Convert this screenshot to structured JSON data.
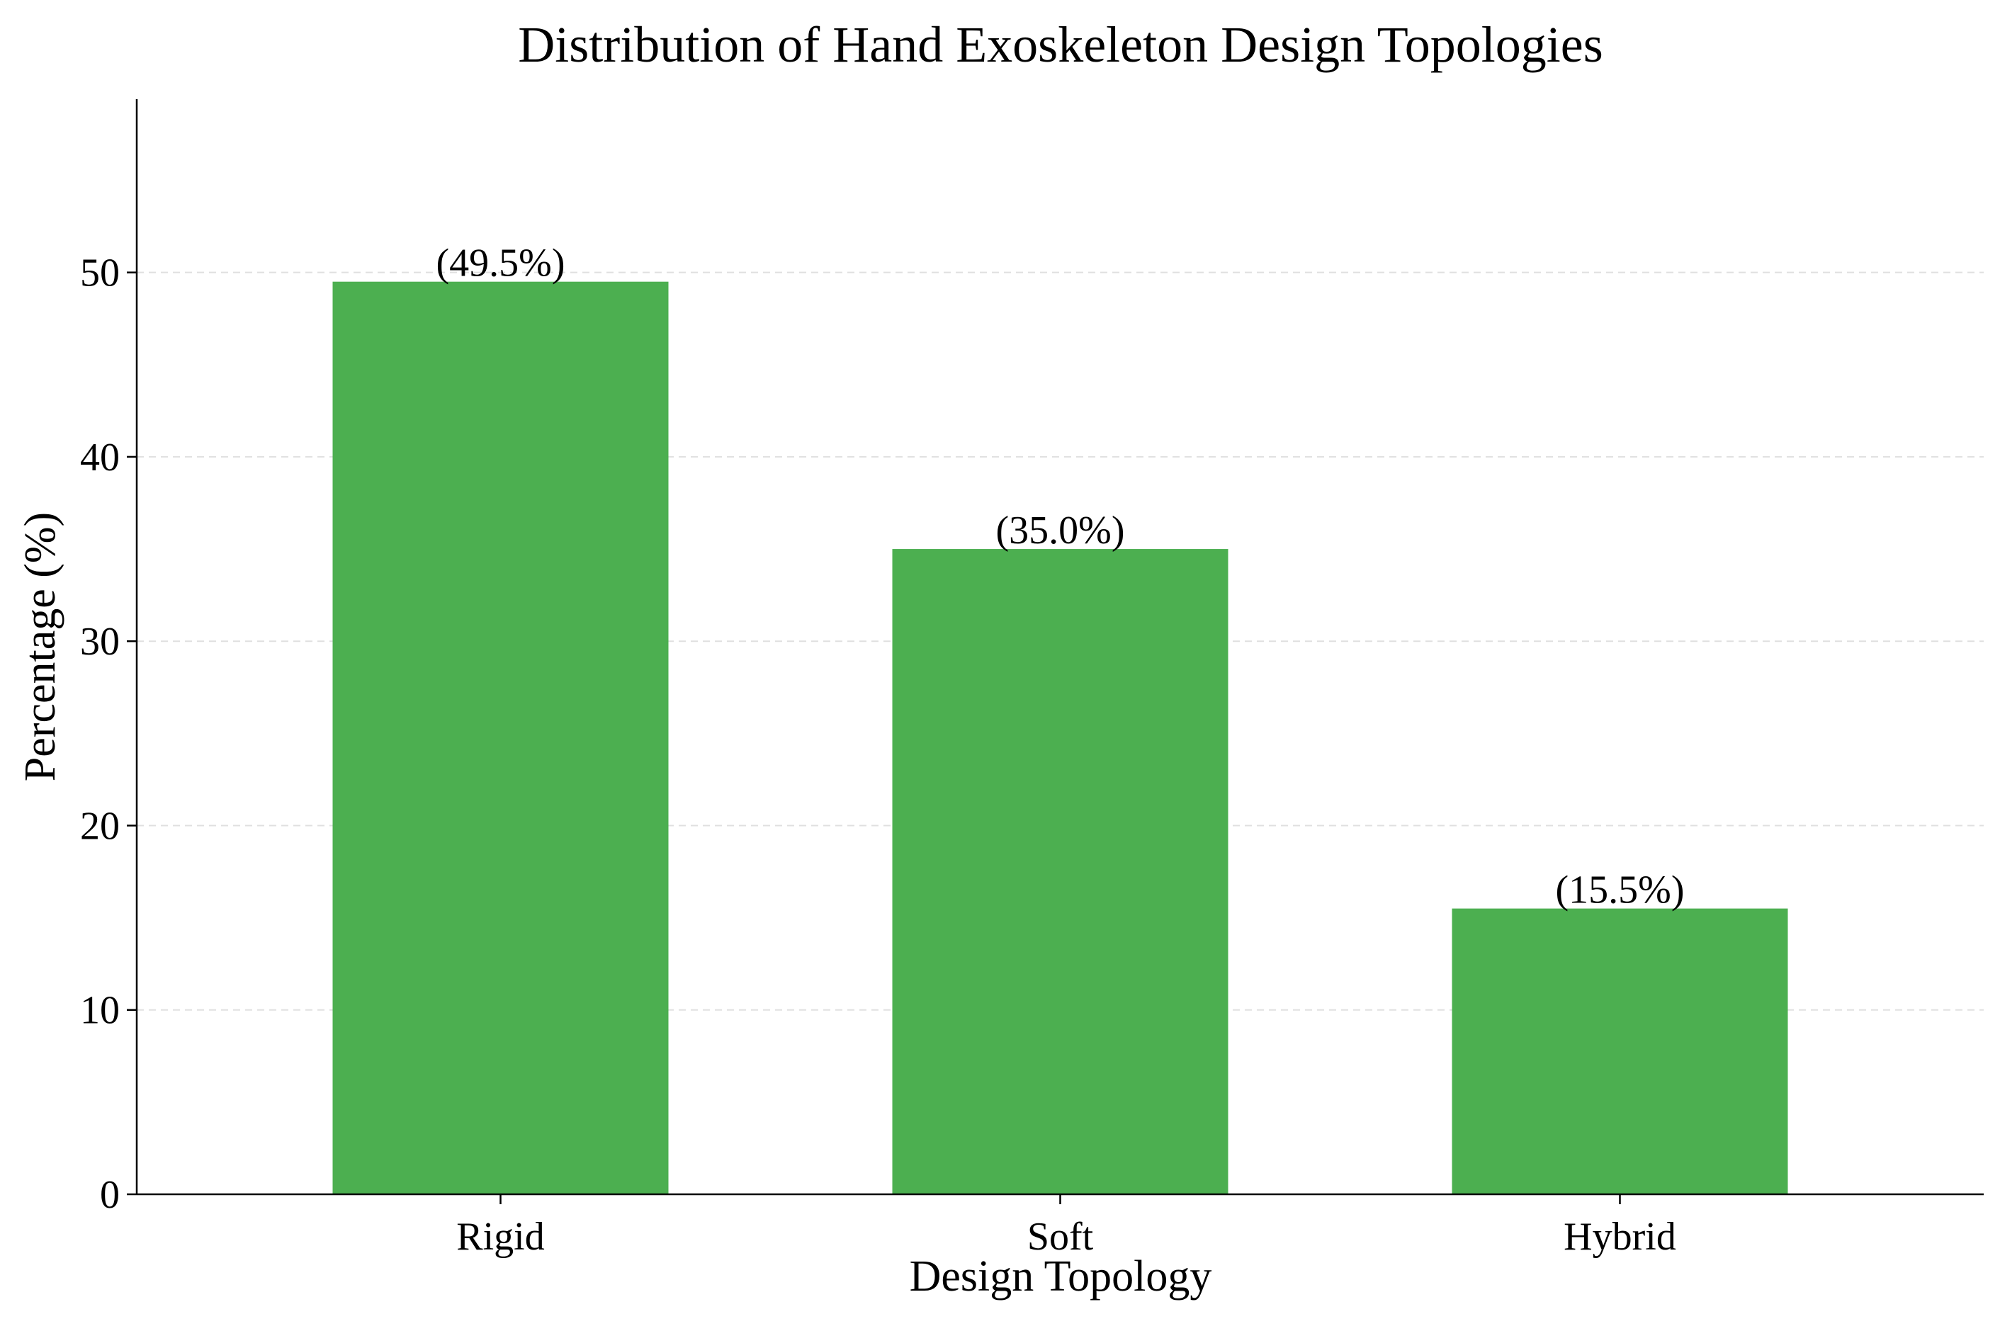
{
  "chart_data": {
    "type": "bar",
    "title": "Distribution of Hand Exoskeleton Design Topologies",
    "xlabel": "Design Topology",
    "ylabel": "Percentage (%)",
    "categories": [
      "Rigid",
      "Soft",
      "Hybrid"
    ],
    "values": [
      49.5,
      35.0,
      15.5
    ],
    "data_labels": [
      "(49.5%)",
      "(35.0%)",
      "(15.5%)"
    ],
    "ylim": [
      0,
      59.4
    ],
    "yticks": [
      0,
      10,
      20,
      30,
      40,
      50
    ],
    "ytick_labels": [
      "0",
      "10",
      "20",
      "30",
      "40",
      "50"
    ],
    "grid": "y-dashed",
    "legend": "none",
    "colors": {
      "bar": "#4caf50",
      "grid": "#e0e0e0",
      "axis": "#000000"
    }
  }
}
